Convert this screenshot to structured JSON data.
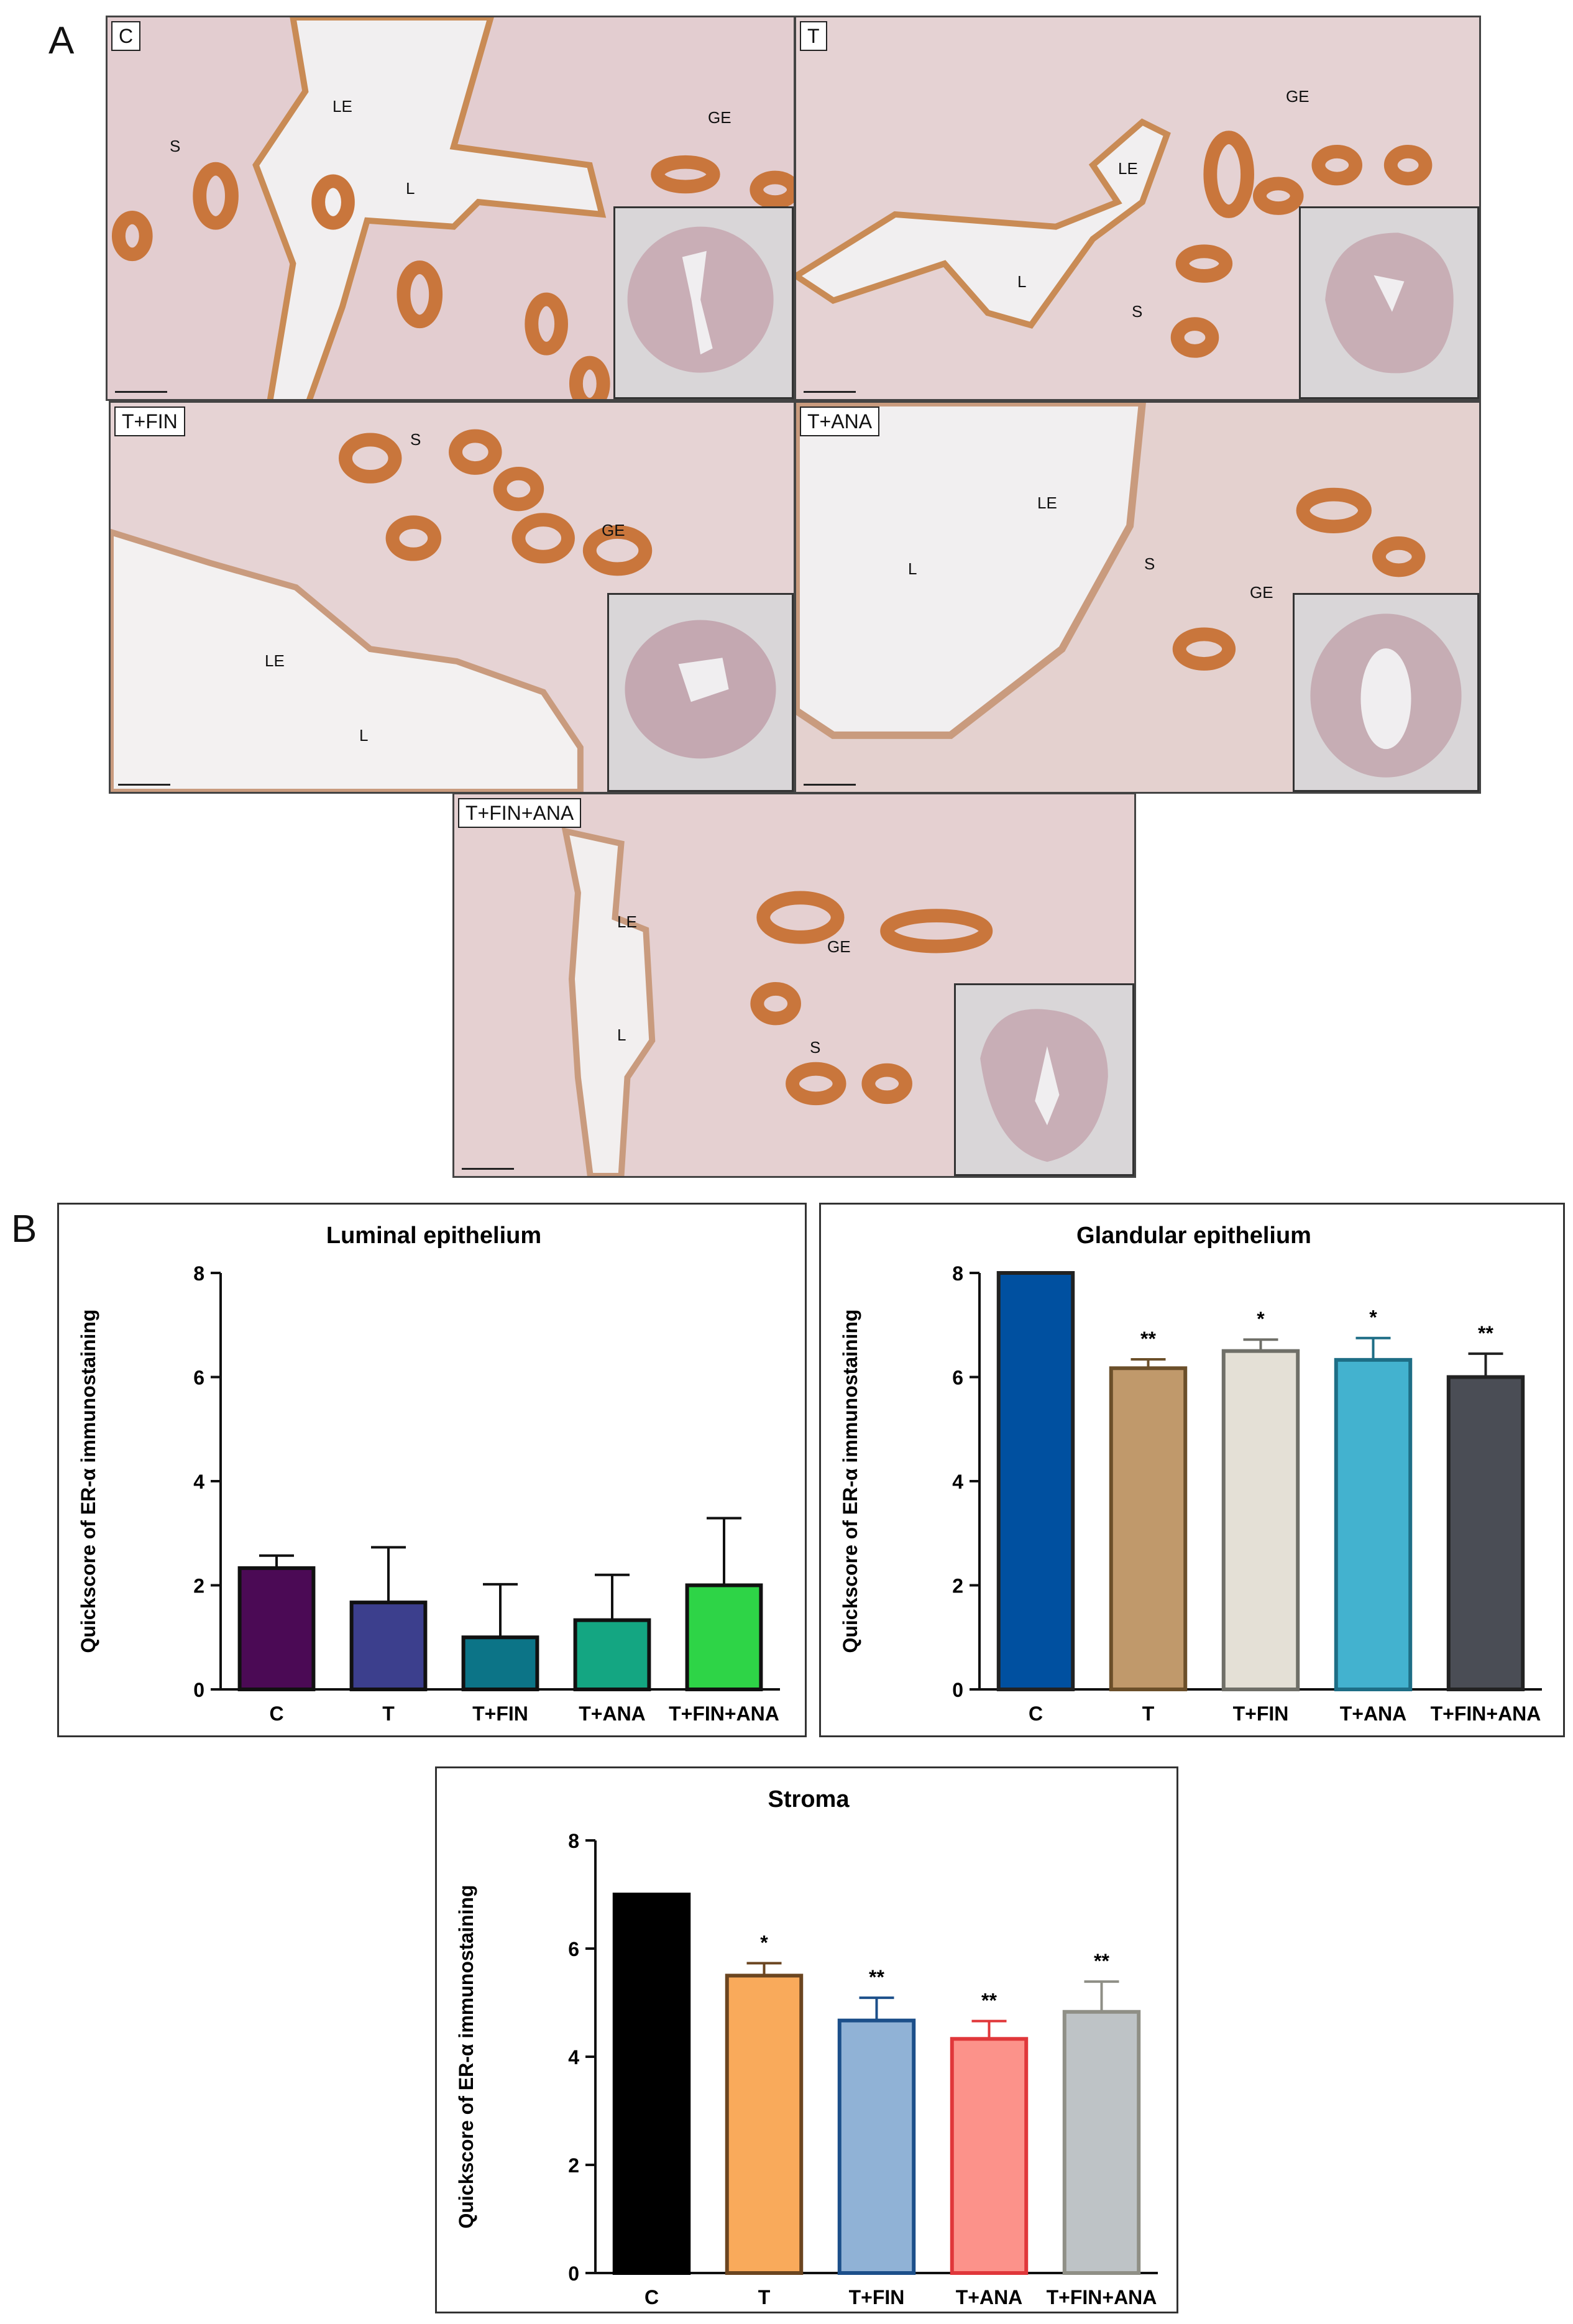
{
  "panel_labels": {
    "a": "A",
    "b": "B"
  },
  "micrographs": [
    {
      "tag": "C",
      "annotations": [
        "LE",
        "S",
        "L",
        "GE"
      ]
    },
    {
      "tag": "T",
      "annotations": [
        "GE",
        "LE",
        "L",
        "S"
      ]
    },
    {
      "tag": "T+FIN",
      "annotations": [
        "S",
        "GE",
        "LE",
        "L"
      ]
    },
    {
      "tag": "T+ANA",
      "annotations": [
        "LE",
        "L",
        "S",
        "GE"
      ]
    },
    {
      "tag": "T+FIN+ANA",
      "annotations": [
        "LE",
        "GE",
        "L",
        "S"
      ]
    }
  ],
  "colors": {
    "tissue_bg": "#e3cdd0",
    "lumen": "#f1eff0",
    "gland": "#c9763c",
    "nuclei": "#9b4a3b",
    "luminal": [
      "#4b0a55",
      "#3c3f8d",
      "#0c7487",
      "#14a682",
      "#2ed447"
    ],
    "glandular": [
      "#0050a0",
      "#c0996b",
      "#e4e0d6",
      "#43b2cf",
      "#4a4d55"
    ],
    "glandular_edges": [
      "#222222",
      "#6b4f2a",
      "#6f6f68",
      "#1e6e86",
      "#222222"
    ],
    "stroma": [
      "#000000",
      "#f9aa5b",
      "#90b2d6",
      "#fc928a",
      "#bec3c6"
    ],
    "stroma_edges": [
      "#000000",
      "#6b4520",
      "#1c4f8a",
      "#e0373a",
      "#8f8f86"
    ]
  },
  "chart_data": [
    {
      "type": "bar",
      "title": "Luminal epithelium",
      "ylabel": "Quickscore of ER-α immunostaining",
      "xlabel": "",
      "categories": [
        "C",
        "T",
        "T+FIN",
        "T+ANA",
        "T+FIN+ANA"
      ],
      "values": [
        2.33,
        1.67,
        1.0,
        1.33,
        2.0
      ],
      "errors": [
        0.24,
        1.06,
        1.02,
        0.87,
        1.29
      ],
      "significance": [
        "",
        "",
        "",
        "",
        ""
      ],
      "ylim": [
        0,
        8
      ],
      "yticks": [
        "0",
        "2",
        "4",
        "6",
        "8"
      ]
    },
    {
      "type": "bar",
      "title": "Glandular epithelium",
      "ylabel": "Quickscore of ER-α immunostaining",
      "xlabel": "",
      "categories": [
        "C",
        "T",
        "T+FIN",
        "T+ANA",
        "T+FIN+ANA"
      ],
      "values": [
        8.0,
        6.17,
        6.5,
        6.33,
        6.0
      ],
      "errors": [
        0,
        0.17,
        0.22,
        0.42,
        0.45
      ],
      "significance": [
        "",
        "**",
        "*",
        "*",
        "**"
      ],
      "ylim": [
        0,
        8
      ],
      "yticks": [
        "0",
        "2",
        "4",
        "6",
        "8"
      ]
    },
    {
      "type": "bar",
      "title": "Stroma",
      "ylabel": "Quickscore of ER-α immunostaining",
      "xlabel": "",
      "categories": [
        "C",
        "T",
        "T+FIN",
        "T+ANA",
        "T+FIN+ANA"
      ],
      "values": [
        7.0,
        5.5,
        4.67,
        4.33,
        4.83
      ],
      "errors": [
        0,
        0.23,
        0.42,
        0.33,
        0.56
      ],
      "significance": [
        "",
        "*",
        "**",
        "**",
        "**"
      ],
      "ylim": [
        0,
        8
      ],
      "yticks": [
        "0",
        "2",
        "4",
        "6",
        "8"
      ]
    }
  ]
}
